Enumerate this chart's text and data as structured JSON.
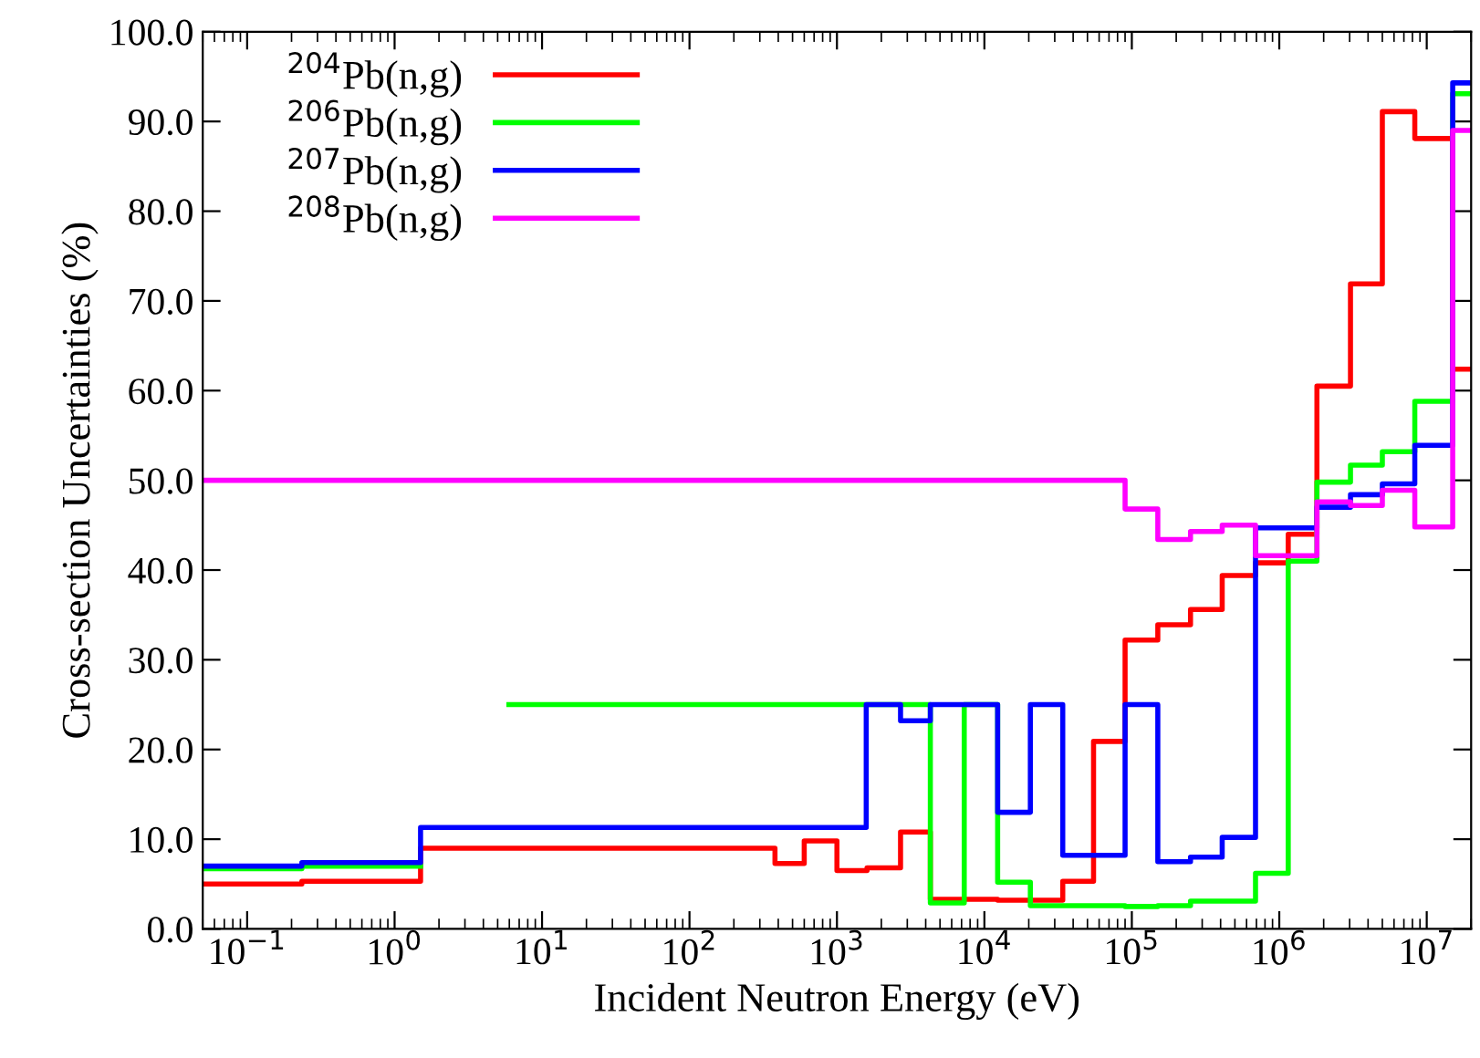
{
  "chart_data": {
    "type": "step",
    "xlabel": "Incident Neutron Energy (eV)",
    "ylabel": "Cross-section Uncertainties (%)",
    "log": "x",
    "xlim": [
      0.05,
      20000000
    ],
    "ylim": [
      0,
      100
    ],
    "xticks": [
      {
        "value": 0.1,
        "label": "10$^{−1}$"
      },
      {
        "value": 1,
        "label": "10$^{0}$"
      },
      {
        "value": 10,
        "label": "10$^{1}$"
      },
      {
        "value": 100,
        "label": "10$^{2}$"
      },
      {
        "value": 1000,
        "label": "10$^{3}$"
      },
      {
        "value": 10000,
        "label": "10$^{4}$"
      },
      {
        "value": 100000,
        "label": "10$^{5}$"
      },
      {
        "value": 1000000,
        "label": "10$^{6}$"
      },
      {
        "value": 10000000,
        "label": "10$^{7}$"
      }
    ],
    "yticks": [
      {
        "value": 0,
        "label": "0.0"
      },
      {
        "value": 10,
        "label": "10.0"
      },
      {
        "value": 20,
        "label": "20.0"
      },
      {
        "value": 30,
        "label": "30.0"
      },
      {
        "value": 40,
        "label": "40.0"
      },
      {
        "value": 50,
        "label": "50.0"
      },
      {
        "value": 60,
        "label": "60.0"
      },
      {
        "value": 70,
        "label": "70.0"
      },
      {
        "value": 80,
        "label": "80.0"
      },
      {
        "value": 90,
        "label": "90.0"
      },
      {
        "value": 100,
        "label": "100.0"
      }
    ],
    "grid": false,
    "legend": "top left",
    "line_style": "solid",
    "marker": "none",
    "series": [
      {
        "name": "$^{204}$Pb(n,g)",
        "color": "#ff0000",
        "x": [
          0.05,
          0.235,
          1.5,
          380,
          600,
          1000,
          1600,
          2700,
          4300,
          12300,
          34000,
          55000,
          90000,
          150000,
          250000,
          410000,
          690000,
          1150000,
          1800000,
          3040000,
          5000000,
          8300000,
          15000000,
          20000000
        ],
        "values": [
          5.0,
          5.3,
          9.0,
          7.3,
          9.8,
          6.5,
          6.8,
          10.8,
          3.3,
          3.2,
          5.3,
          20.9,
          32.2,
          33.9,
          35.6,
          39.4,
          40.8,
          44.0,
          60.5,
          71.9,
          91.1,
          88.1,
          62.4,
          62.4
        ]
      },
      {
        "name": "$^{206}$Pb(n,g)",
        "color": "#00ff00",
        "x": [
          0.05,
          0.235,
          1.5,
          5.96,
          4300,
          7300,
          12300,
          20500,
          90000,
          150000,
          250000,
          690000,
          1150000,
          1800000,
          3040000,
          5000000,
          8300000,
          15000000,
          20000000
        ],
        "values": [
          6.7,
          7.0,
          null,
          25.0,
          2.9,
          25.0,
          5.2,
          2.6,
          2.5,
          2.6,
          3.1,
          6.2,
          41.0,
          49.8,
          51.7,
          53.2,
          58.8,
          93.1,
          93.1
        ]
      },
      {
        "name": "$^{207}$Pb(n,g)",
        "color": "#0000ff",
        "x": [
          0.05,
          0.235,
          1.5,
          1580,
          2700,
          4300,
          12300,
          20500,
          34000,
          90000,
          150000,
          250000,
          410000,
          690000,
          1800000,
          3040000,
          5000000,
          8300000,
          15000000,
          20000000
        ],
        "values": [
          7.0,
          7.4,
          11.3,
          25.0,
          23.2,
          25.0,
          13.0,
          25.0,
          8.2,
          25.0,
          7.5,
          8.0,
          10.2,
          44.7,
          47.0,
          48.4,
          49.6,
          53.9,
          94.3,
          94.3
        ]
      },
      {
        "name": "$^{208}$Pb(n,g)",
        "color": "#ff00ff",
        "x": [
          0.05,
          90000,
          150000,
          250000,
          410000,
          690000,
          1800000,
          3040000,
          5000000,
          8300000,
          15000000,
          20000000
        ],
        "values": [
          50.0,
          46.8,
          43.4,
          44.3,
          45.0,
          41.6,
          47.6,
          47.2,
          48.9,
          44.8,
          89.0,
          89.0
        ]
      }
    ]
  }
}
